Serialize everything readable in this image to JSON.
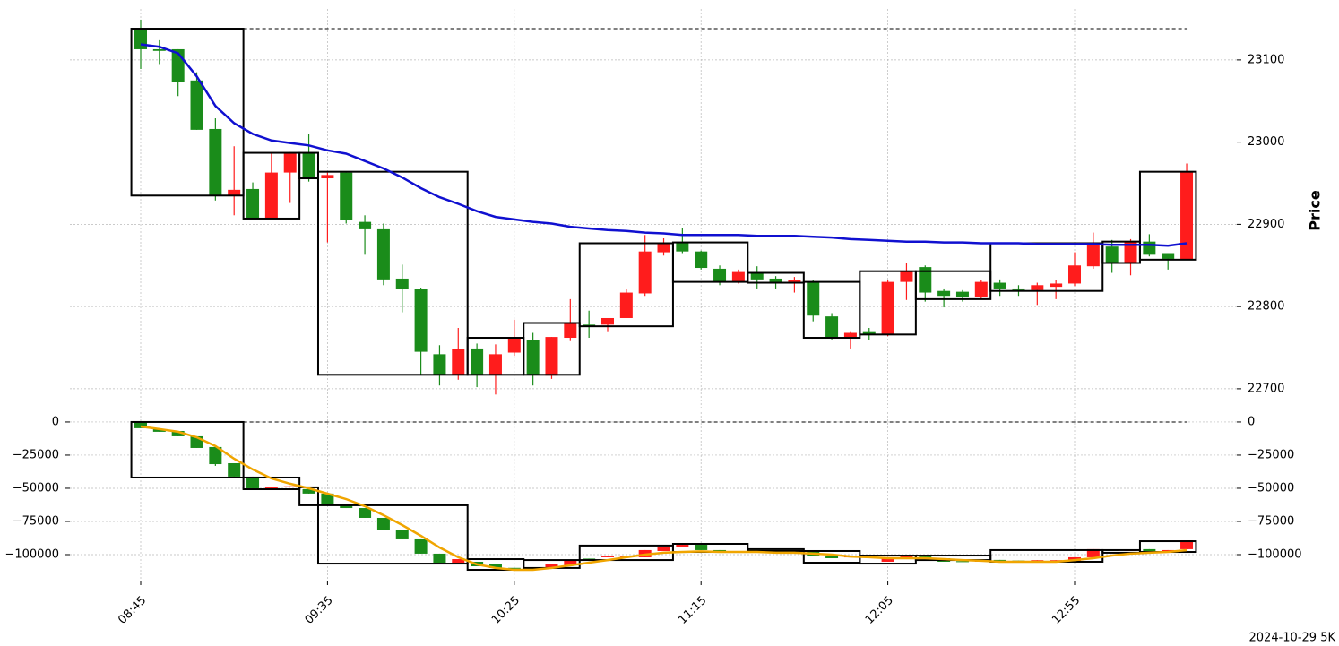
{
  "chart_data": [
    {
      "type": "candlestick",
      "y_label": "Price",
      "ylim": [
        22677,
        23162
      ],
      "yticks": [
        22700,
        22800,
        22900,
        23000,
        23100
      ],
      "grid": true,
      "up_color": "#ff1c1c",
      "down_color": "#1a8c1a",
      "reference_line": 23138,
      "open": [
        23138,
        23113,
        23113,
        23075,
        23016,
        22935,
        22943,
        22907,
        22963,
        22986,
        22956,
        22963,
        22903,
        22894,
        22834,
        22821,
        22742,
        22717,
        22749,
        22717,
        22744,
        22759,
        22716,
        22762,
        22778,
        22778,
        22786,
        22816,
        22866,
        22878,
        22867,
        22846,
        22830,
        22841,
        22834,
        22830,
        22830,
        22788,
        22762,
        22770,
        22766,
        22830,
        22848,
        22819,
        22818,
        22812,
        22829,
        22822,
        22820,
        22824,
        22828,
        22849,
        22873,
        22853,
        22879,
        22865,
        22857
      ],
      "high": [
        23149,
        23124,
        23113,
        23085,
        23029,
        22995,
        22951,
        22986,
        22988,
        23010,
        22963,
        22963,
        22911,
        22901,
        22851,
        22823,
        22753,
        22774,
        22755,
        22754,
        22784,
        22768,
        22763,
        22809,
        22795,
        22786,
        22821,
        22887,
        22883,
        22895,
        22868,
        22850,
        22845,
        22849,
        22837,
        22836,
        22832,
        22792,
        22770,
        22774,
        22832,
        22853,
        22850,
        22822,
        22820,
        22832,
        22833,
        22826,
        22829,
        22832,
        22866,
        22890,
        22881,
        22882,
        22888,
        22865,
        22974
      ],
      "low": [
        23089,
        23095,
        23056,
        23015,
        22929,
        22911,
        22907,
        22907,
        22926,
        22952,
        22878,
        22901,
        22863,
        22826,
        22793,
        22717,
        22704,
        22711,
        22702,
        22693,
        22740,
        22704,
        22712,
        22758,
        22762,
        22770,
        22786,
        22813,
        22862,
        22865,
        22845,
        22826,
        22828,
        22822,
        22822,
        22817,
        22782,
        22760,
        22749,
        22759,
        22764,
        22808,
        22806,
        22799,
        22806,
        22810,
        22813,
        22813,
        22802,
        22809,
        22825,
        22846,
        22841,
        22838,
        22861,
        22845,
        22857
      ],
      "close": [
        23113,
        23111,
        23073,
        23015,
        22935,
        22942,
        22907,
        22963,
        22986,
        22956,
        22960,
        22905,
        22894,
        22833,
        22821,
        22745,
        22717,
        22748,
        22717,
        22742,
        22762,
        22717,
        22763,
        22780,
        22776,
        22786,
        22817,
        22867,
        22877,
        22867,
        22847,
        22830,
        22842,
        22833,
        22829,
        22832,
        22789,
        22762,
        22768,
        22766,
        22830,
        22843,
        22817,
        22813,
        22812,
        22830,
        22822,
        22820,
        22826,
        22828,
        22850,
        22877,
        22854,
        22879,
        22863,
        22858,
        22964
      ],
      "line": {
        "color": "#1010d0",
        "values": [
          23119,
          23116,
          23108,
          23080,
          23044,
          23023,
          23010,
          23002,
          22999,
          22996,
          22990,
          22986,
          22977,
          22968,
          22957,
          22944,
          22933,
          22925,
          22916,
          22909,
          22906,
          22903,
          22901,
          22897,
          22895,
          22893,
          22892,
          22890,
          22889,
          22887,
          22887,
          22887,
          22887,
          22886,
          22886,
          22886,
          22885,
          22884,
          22882,
          22881,
          22880,
          22879,
          22879,
          22878,
          22878,
          22877,
          22877,
          22877,
          22876,
          22876,
          22876,
          22876,
          22875,
          22875,
          22875,
          22874,
          22877
        ]
      },
      "boxes": [
        {
          "start": 0,
          "end": 5,
          "top": 23138,
          "bottom": 22935
        },
        {
          "start": 6,
          "end": 8,
          "top": 22987,
          "bottom": 22907
        },
        {
          "start": 9,
          "end": 9,
          "top": 22987,
          "bottom": 22956
        },
        {
          "start": 10,
          "end": 17,
          "top": 22964,
          "bottom": 22717
        },
        {
          "start": 18,
          "end": 20,
          "top": 22762,
          "bottom": 22717
        },
        {
          "start": 21,
          "end": 23,
          "top": 22780,
          "bottom": 22717
        },
        {
          "start": 24,
          "end": 28,
          "top": 22877,
          "bottom": 22776
        },
        {
          "start": 29,
          "end": 32,
          "top": 22878,
          "bottom": 22830
        },
        {
          "start": 33,
          "end": 35,
          "top": 22841,
          "bottom": 22829
        },
        {
          "start": 36,
          "end": 38,
          "top": 22830,
          "bottom": 22762
        },
        {
          "start": 39,
          "end": 41,
          "top": 22843,
          "bottom": 22766
        },
        {
          "start": 42,
          "end": 45,
          "top": 22843,
          "bottom": 22809
        },
        {
          "start": 46,
          "end": 51,
          "top": 22877,
          "bottom": 22819
        },
        {
          "start": 52,
          "end": 53,
          "top": 22879,
          "bottom": 22853
        },
        {
          "start": 54,
          "end": 56,
          "top": 22964,
          "bottom": 22857
        }
      ]
    },
    {
      "type": "candlestick",
      "ylim": [
        -119600,
        7400
      ],
      "grid": true,
      "up_color": "#ff1c1c",
      "down_color": "#1a8c1a",
      "reference_line": 0,
      "yticks": [
        0,
        {
          "value": -25000,
          "label": "−25000"
        },
        {
          "value": -50000,
          "label": "−50000"
        },
        {
          "value": -75000,
          "label": "−75000"
        },
        {
          "value": -100000,
          "label": "−100000"
        }
      ],
      "categories": [
        "08:45",
        null,
        null,
        null,
        null,
        null,
        null,
        null,
        null,
        null,
        "09:35",
        null,
        null,
        null,
        null,
        null,
        null,
        null,
        null,
        null,
        "10:25",
        null,
        null,
        null,
        null,
        null,
        null,
        null,
        null,
        null,
        "11:15",
        null,
        null,
        null,
        null,
        null,
        null,
        null,
        null,
        null,
        "12:05",
        null,
        null,
        null,
        null,
        null,
        null,
        null,
        null,
        null,
        "12:55",
        null,
        null,
        null,
        null,
        null,
        null
      ],
      "annotation": "2024-10-29 5K",
      "open": [
        0,
        -5400,
        -6800,
        -10800,
        -18900,
        -31100,
        -41200,
        -50000,
        -49000,
        -50700,
        -54000,
        -62200,
        -64900,
        -72300,
        -81100,
        -88500,
        -99300,
        -106100,
        -105400,
        -107400,
        -110000,
        -110500,
        -110100,
        -108100,
        -103000,
        -102000,
        -101500,
        -102000,
        -97300,
        -94600,
        -92600,
        -96600,
        -98000,
        -96600,
        -97800,
        -98000,
        -98000,
        -100700,
        -102000,
        -101400,
        -105400,
        -103400,
        -101400,
        -102700,
        -105000,
        -105000,
        -104000,
        -104500,
        -104700,
        -104700,
        -104700,
        -102000,
        -96000,
        -97300,
        -95900,
        -97300,
        -95900
      ],
      "high": [
        0,
        -5400,
        -6800,
        -10800,
        -18900,
        -31100,
        -41200,
        -49000,
        -48500,
        -50700,
        -54000,
        -62200,
        -64900,
        -72300,
        -81100,
        -88500,
        -99300,
        -103400,
        -105400,
        -107400,
        -110000,
        -110500,
        -107400,
        -104100,
        -103000,
        -101000,
        -101000,
        -96600,
        -93900,
        -92600,
        -92600,
        -96600,
        -97300,
        -96600,
        -97800,
        -97600,
        -98000,
        -100700,
        -101400,
        -101000,
        -102000,
        -100700,
        -101400,
        -102700,
        -105000,
        -104700,
        -104000,
        -104500,
        -104200,
        -104200,
        -102000,
        -95900,
        -96000,
        -96000,
        -95900,
        -96600,
        -89200
      ],
      "low": [
        -4700,
        -7400,
        -10800,
        -19600,
        -33100,
        -41200,
        -50000,
        -50000,
        -49000,
        -54000,
        -62200,
        -64900,
        -72300,
        -81100,
        -88500,
        -99300,
        -106100,
        -106100,
        -108800,
        -110100,
        -110600,
        -111000,
        -110100,
        -108100,
        -103600,
        -102000,
        -101500,
        -102000,
        -97300,
        -94600,
        -96600,
        -98000,
        -98000,
        -98000,
        -98200,
        -98000,
        -100700,
        -102700,
        -102000,
        -101400,
        -105400,
        -103400,
        -103400,
        -105400,
        -105400,
        -105000,
        -104500,
        -104800,
        -104700,
        -104700,
        -104700,
        -102000,
        -97300,
        -97300,
        -97300,
        -97300,
        -95900
      ],
      "close": [
        -4700,
        -7400,
        -10800,
        -19600,
        -31800,
        -41200,
        -50000,
        -49000,
        -48500,
        -54000,
        -62200,
        -64900,
        -72300,
        -81100,
        -88500,
        -99300,
        -106100,
        -103400,
        -108800,
        -110100,
        -110600,
        -111000,
        -107400,
        -104100,
        -103600,
        -101000,
        -101000,
        -96600,
        -93900,
        -92600,
        -96600,
        -98000,
        -97300,
        -98000,
        -98200,
        -97600,
        -100700,
        -102700,
        -101400,
        -101000,
        -102000,
        -100700,
        -103400,
        -105400,
        -105400,
        -104700,
        -104500,
        -104800,
        -104200,
        -104200,
        -102000,
        -95900,
        -97300,
        -96000,
        -97300,
        -96600,
        -89200
      ],
      "line": {
        "color": "#f0a500",
        "values": [
          -3400,
          -5400,
          -7400,
          -11500,
          -18200,
          -27700,
          -35800,
          -42600,
          -46600,
          -50000,
          -54100,
          -58100,
          -63500,
          -70300,
          -77700,
          -85800,
          -94600,
          -102000,
          -107400,
          -110100,
          -111500,
          -111500,
          -110100,
          -108100,
          -106100,
          -104100,
          -102000,
          -100000,
          -98600,
          -98000,
          -97600,
          -98000,
          -98000,
          -98000,
          -98600,
          -98600,
          -99300,
          -100000,
          -101400,
          -102000,
          -102700,
          -102700,
          -102700,
          -103400,
          -104100,
          -104700,
          -105400,
          -105400,
          -105400,
          -105400,
          -104100,
          -102700,
          -100700,
          -99300,
          -98600,
          -98000,
          -96600
        ]
      },
      "boxes": [
        {
          "start": 0,
          "end": 5,
          "top": 0,
          "bottom": -41900
        },
        {
          "start": 6,
          "end": 8,
          "top": -41900,
          "bottom": -50700
        },
        {
          "start": 9,
          "end": 9,
          "top": -49300,
          "bottom": -62800
        },
        {
          "start": 10,
          "end": 17,
          "top": -62800,
          "bottom": -106800
        },
        {
          "start": 18,
          "end": 20,
          "top": -103400,
          "bottom": -111500
        },
        {
          "start": 21,
          "end": 23,
          "top": -104100,
          "bottom": -110100
        },
        {
          "start": 24,
          "end": 28,
          "top": -93200,
          "bottom": -104100
        },
        {
          "start": 29,
          "end": 32,
          "top": -91900,
          "bottom": -98000
        },
        {
          "start": 33,
          "end": 35,
          "top": -95900,
          "bottom": -97300
        },
        {
          "start": 36,
          "end": 38,
          "top": -97300,
          "bottom": -106100
        },
        {
          "start": 39,
          "end": 41,
          "top": -100700,
          "bottom": -106800
        },
        {
          "start": 42,
          "end": 45,
          "top": -100700,
          "bottom": -104100
        },
        {
          "start": 46,
          "end": 51,
          "top": -96600,
          "bottom": -105400
        },
        {
          "start": 52,
          "end": 53,
          "top": -96600,
          "bottom": -98600
        },
        {
          "start": 54,
          "end": 56,
          "top": -89900,
          "bottom": -98000
        }
      ]
    }
  ]
}
